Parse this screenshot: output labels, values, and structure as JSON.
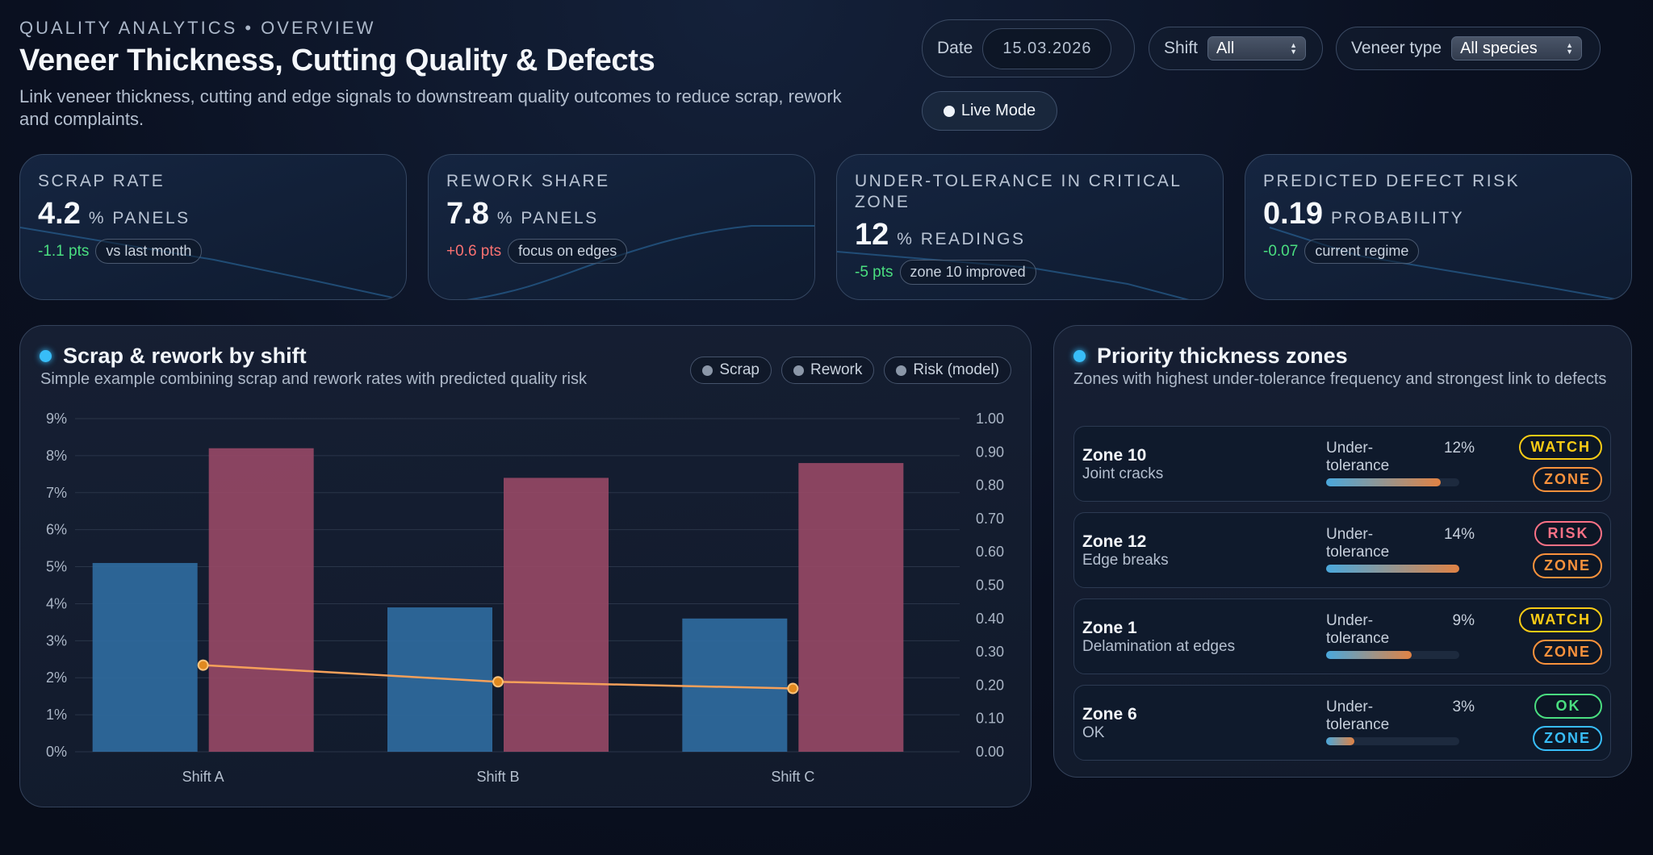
{
  "header": {
    "eyebrow": "QUALITY ANALYTICS • OVERVIEW",
    "title": "Veneer Thickness, Cutting Quality & Defects",
    "subtitle": "Link veneer thickness, cutting and edge signals to downstream quality outcomes to reduce scrap, rework and complaints."
  },
  "controls": {
    "date_label": "Date",
    "date_value": "15.03.2026",
    "shift_label": "Shift",
    "shift_value": "All",
    "veneer_label": "Veneer type",
    "veneer_value": "All species",
    "live_label": "Live Mode"
  },
  "kpis": [
    {
      "label": "SCRAP RATE",
      "value": "4.2",
      "unit": "% PANELS",
      "delta": "-1.1 pts",
      "delta_kind": "good",
      "note": "vs last month"
    },
    {
      "label": "REWORK SHARE",
      "value": "7.8",
      "unit": "% PANELS",
      "delta": "+0.6 pts",
      "delta_kind": "bad",
      "note": "focus on edges"
    },
    {
      "label": "UNDER-TOLERANCE IN CRITICAL ZONE",
      "value": "12",
      "unit": "% READINGS",
      "delta": "-5 pts",
      "delta_kind": "good",
      "note": "zone 10 improved"
    },
    {
      "label": "PREDICTED DEFECT RISK",
      "value": "0.19",
      "unit": "PROBABILITY",
      "delta": "-0.07",
      "delta_kind": "good",
      "note": "current regime"
    }
  ],
  "chart_panel": {
    "title": "Scrap & rework by shift",
    "subtitle": "Simple example combining scrap and rework rates with predicted quality risk",
    "legend": [
      "Scrap",
      "Rework",
      "Risk (model)"
    ]
  },
  "chart_data": {
    "type": "bar",
    "title": "Scrap & rework by shift",
    "categories": [
      "Shift A",
      "Shift B",
      "Shift C"
    ],
    "series": [
      {
        "name": "Scrap",
        "type": "bar",
        "axis": "left",
        "values": [
          5.1,
          3.9,
          3.6
        ],
        "color": "#2f6a9e"
      },
      {
        "name": "Rework",
        "type": "bar",
        "axis": "left",
        "values": [
          8.2,
          7.4,
          7.8
        ],
        "color": "#954865"
      },
      {
        "name": "Risk (model)",
        "type": "line",
        "axis": "right",
        "values": [
          0.26,
          0.21,
          0.19
        ],
        "color": "#f5a05a"
      }
    ],
    "y_left": {
      "ylim": [
        0,
        9
      ],
      "ticks": [
        "0%",
        "1%",
        "2%",
        "3%",
        "4%",
        "5%",
        "6%",
        "7%",
        "8%",
        "9%"
      ]
    },
    "y_right": {
      "ylim": [
        0,
        1
      ],
      "ticks": [
        "0.00",
        "0.10",
        "0.20",
        "0.30",
        "0.40",
        "0.50",
        "0.60",
        "0.70",
        "0.80",
        "0.90",
        "1.00"
      ]
    },
    "grid": true
  },
  "zones_panel": {
    "title": "Priority thickness zones",
    "subtitle": "Zones with highest under-tolerance frequency and strongest link to defects",
    "items": [
      {
        "name": "Zone 10",
        "desc": "Joint cracks",
        "metric_label": "Under-tolerance",
        "pct": "12%",
        "fill": 0.86,
        "badge": "WATCH",
        "badge_kind": "watch",
        "tag": "ZONE",
        "tag_kind": "zone"
      },
      {
        "name": "Zone 12",
        "desc": "Edge breaks",
        "metric_label": "Under-tolerance",
        "pct": "14%",
        "fill": 1.0,
        "badge": "RISK",
        "badge_kind": "risk",
        "tag": "ZONE",
        "tag_kind": "zone"
      },
      {
        "name": "Zone 1",
        "desc": "Delamination at edges",
        "metric_label": "Under-tolerance",
        "pct": "9%",
        "fill": 0.64,
        "badge": "WATCH",
        "badge_kind": "watch",
        "tag": "ZONE",
        "tag_kind": "zone"
      },
      {
        "name": "Zone 6",
        "desc": "OK",
        "metric_label": "Under-tolerance",
        "pct": "3%",
        "fill": 0.21,
        "badge": "OK",
        "badge_kind": "ok",
        "tag": "ZONE",
        "tag_kind": "zone-blue"
      }
    ]
  }
}
